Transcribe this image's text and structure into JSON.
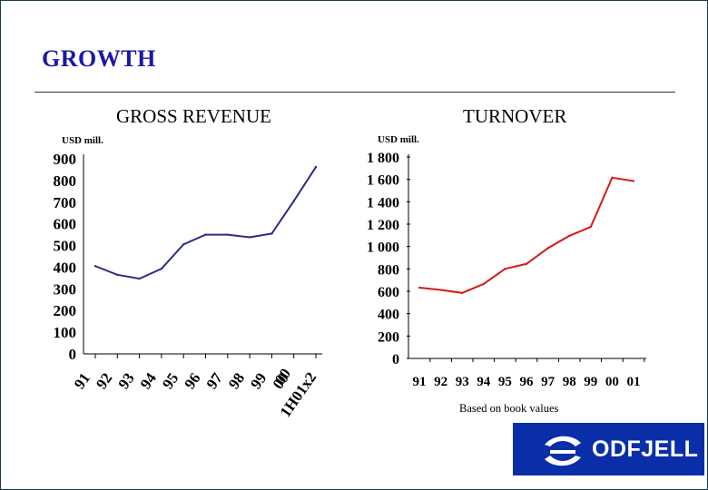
{
  "slide": {
    "title": "GROWTH",
    "footnote": "Based on book values"
  },
  "logo": {
    "text": "ODFJELL",
    "icon": "odfjell-logo-icon"
  },
  "colors": {
    "title": "#1a1aa8",
    "revenue_line": "#2b2d8a",
    "turnover_line": "#d41c1c",
    "logo_bg": "#0a2ea8"
  },
  "chart_data": [
    {
      "type": "line",
      "title": "GROSS REVENUE",
      "unit_label": "USD mill.",
      "categories": [
        "91",
        "92",
        "93",
        "94",
        "95",
        "96",
        "97",
        "98",
        "99",
        "00",
        "1H01x2"
      ],
      "x_label_lines": [
        "00",
        "1H01x2"
      ],
      "values": [
        405,
        365,
        347,
        393,
        505,
        550,
        550,
        538,
        555,
        705,
        862
      ],
      "ylim": [
        0,
        900
      ],
      "yticks": [
        "0",
        "100",
        "200",
        "300",
        "400",
        "500",
        "600",
        "700",
        "800",
        "900"
      ],
      "series_color": "#2b2d8a",
      "grid": false
    },
    {
      "type": "line",
      "title": "TURNOVER",
      "unit_label": "USD mill.",
      "categories": [
        "91",
        "92",
        "93",
        "94",
        "95",
        "96",
        "97",
        "98",
        "99",
        "00",
        "01"
      ],
      "values": [
        632,
        612,
        585,
        665,
        800,
        845,
        985,
        1095,
        1175,
        1615,
        1585
      ],
      "ylim": [
        0,
        1800
      ],
      "yticks": [
        "0",
        "200",
        "400",
        "600",
        "800",
        "1 000",
        "1 200",
        "1 400",
        "1 600",
        "1 800"
      ],
      "series_color": "#d41c1c",
      "grid": false
    }
  ]
}
